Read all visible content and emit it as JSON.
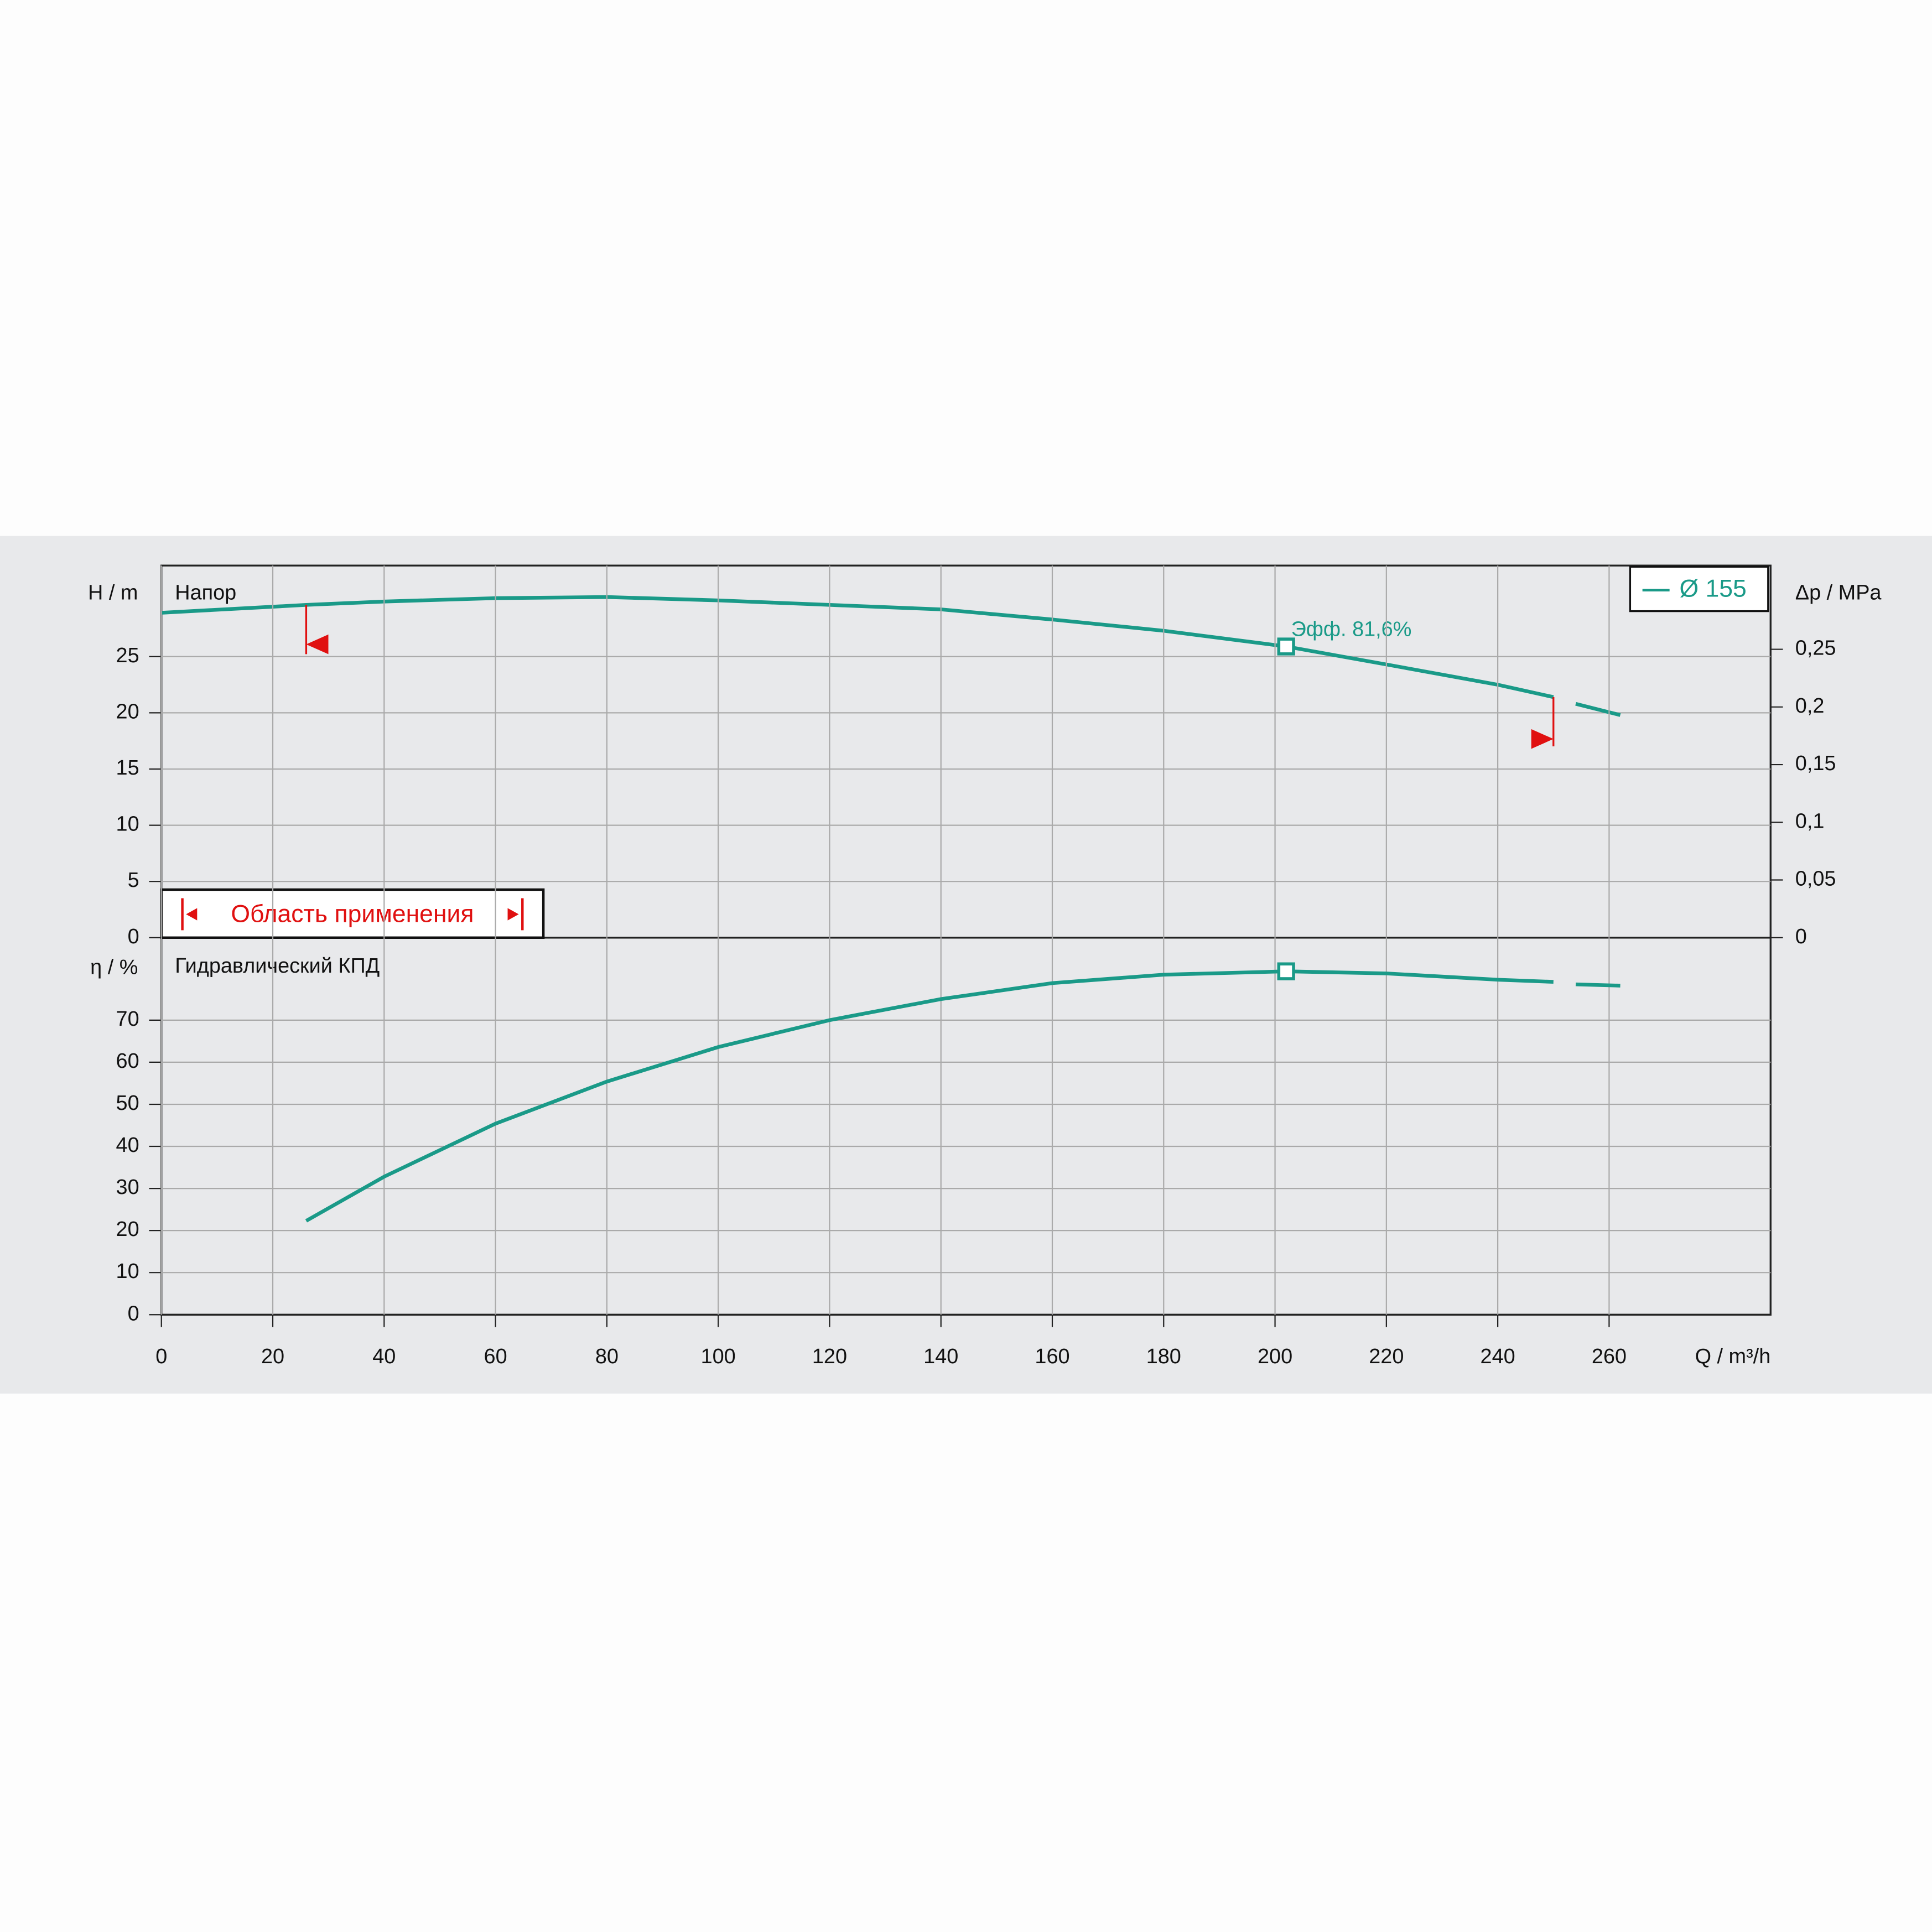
{
  "chart_data": [
    {
      "type": "line",
      "title": "Напор",
      "ylabel": "H / m",
      "y2label": "Δp / MPa",
      "x": [
        0,
        26,
        40,
        60,
        80,
        100,
        120,
        140,
        160,
        180,
        202,
        220,
        240,
        250,
        252,
        254,
        262
      ],
      "series": [
        {
          "name": "Ø 155",
          "color": "#1a9a88",
          "values": [
            28.9,
            29.6,
            29.9,
            30.2,
            30.3,
            30.0,
            29.6,
            29.2,
            28.3,
            27.3,
            25.9,
            24.3,
            22.5,
            21.4,
            null,
            20.8,
            19.8
          ]
        }
      ],
      "xlim": [
        0,
        289
      ],
      "ylim": [
        0,
        33.1
      ],
      "yticks": [
        0,
        5,
        10,
        15,
        20,
        25
      ],
      "y2lim": [
        0,
        0.3226
      ],
      "y2ticks": [
        0,
        {
          "value": 0.05,
          "label": "0,05"
        },
        {
          "value": 0.1,
          "label": "0,1"
        },
        {
          "value": 0.15,
          "label": "0,15"
        },
        {
          "value": 0.2,
          "label": "0,2"
        },
        {
          "value": 0.25,
          "label": "0,25"
        }
      ],
      "grid": true,
      "legend": "upper right",
      "annotations": [
        {
          "text": "Эфф.  81,6%",
          "x": 202,
          "y": 25.9
        }
      ],
      "operating_range": {
        "label": "Область применения",
        "x": [
          26,
          250
        ]
      }
    },
    {
      "type": "line",
      "title": "Гидравлический КПД",
      "ylabel": "η / %",
      "xlabel": "Q / m³/h",
      "x": [
        26,
        40,
        60,
        80,
        100,
        120,
        140,
        160,
        180,
        202,
        220,
        240,
        250,
        252,
        254,
        262
      ],
      "series": [
        {
          "color": "#1a9a88",
          "values": [
            22.3,
            32.8,
            45.4,
            55.4,
            63.6,
            70,
            75,
            78.8,
            80.8,
            81.6,
            81.1,
            79.6,
            79.1,
            null,
            78.5,
            78.2
          ]
        }
      ],
      "xlim": [
        0,
        289
      ],
      "xticks": [
        0,
        20,
        40,
        60,
        80,
        100,
        120,
        140,
        160,
        180,
        200,
        220,
        240,
        260
      ],
      "ylim": [
        0,
        89.6
      ],
      "yticks": [
        0,
        10,
        20,
        30,
        40,
        50,
        60,
        70
      ],
      "grid": true,
      "best_point": {
        "x": 202,
        "y": 81.6
      }
    }
  ]
}
